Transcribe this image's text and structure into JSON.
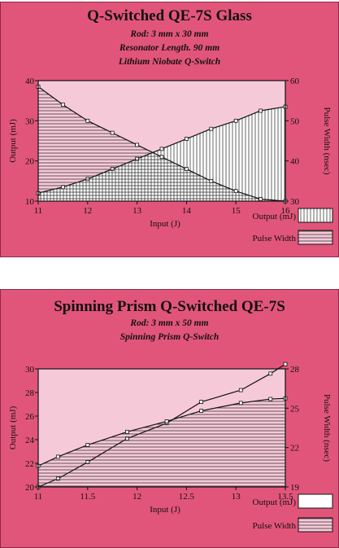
{
  "chart_data": [
    {
      "type": "area",
      "title": "Q-Switched QE-7S  Glass",
      "subtitles": [
        "Rod: 3 mm x 30 mm",
        "Resonator Length. 90 mm",
        "Lithium Niobate Q-Switch"
      ],
      "xlabel": "Input (J)",
      "ylabel": "Output (mJ)",
      "y2label": "Pulse Width (nsec)",
      "xlim": [
        11,
        16
      ],
      "ylim": [
        10,
        40
      ],
      "y2lim": [
        30,
        60
      ],
      "xticks": [
        "11",
        "12",
        "13",
        "14",
        "15",
        "16"
      ],
      "yticks": [
        "10",
        "20",
        "30",
        "40"
      ],
      "y2ticks": [
        "30",
        "40",
        "50",
        "60"
      ],
      "legend_position": "bottom-right",
      "series": [
        {
          "name": "Output (mJ)",
          "axis": "left",
          "fill": "vertical-hatch",
          "x": [
            11,
            11.5,
            12,
            12.5,
            13,
            13.5,
            14,
            14.5,
            15,
            15.5,
            16
          ],
          "values": [
            12,
            13.5,
            15.5,
            18,
            20.5,
            23,
            25.5,
            28,
            30,
            32.5,
            33.5
          ]
        },
        {
          "name": "Pulse Width",
          "axis": "right",
          "fill": "horizontal-hatch",
          "x": [
            11,
            11.5,
            12,
            12.5,
            13,
            13.5,
            14,
            14.5,
            15,
            15.5,
            16
          ],
          "values": [
            58.5,
            54,
            50,
            47,
            44,
            41,
            38,
            35,
            32.5,
            30.5,
            30
          ]
        }
      ]
    },
    {
      "type": "area",
      "title": "Spinning Prism Q-Switched QE-7S",
      "subtitles": [
        "Rod: 3 mm x 50 mm",
        "Spinning Prism Q-Switch"
      ],
      "xlabel": "Input (J)",
      "ylabel": "Output (mJ)",
      "y2label": "Pulse Width (nsec)",
      "xlim": [
        11,
        13.5
      ],
      "ylim": [
        20,
        30
      ],
      "y2lim": [
        19,
        28
      ],
      "xticks": [
        "11",
        "11.5",
        "12",
        "12.5",
        "13",
        "13.5"
      ],
      "yticks": [
        "20",
        "22",
        "24",
        "26",
        "28",
        "30"
      ],
      "y2ticks": [
        "19",
        "22",
        "25",
        "28"
      ],
      "legend_position": "bottom-right",
      "series": [
        {
          "name": "Output (mJ)",
          "axis": "left",
          "fill": "none",
          "x": [
            11,
            11.2,
            11.5,
            11.9,
            12.3,
            12.65,
            13.05,
            13.35,
            13.5
          ],
          "values": [
            20,
            20.7,
            22.1,
            24.1,
            25.4,
            27.2,
            28.2,
            29.6,
            30.4
          ]
        },
        {
          "name": "Pulse Width",
          "axis": "right",
          "fill": "horizontal-hatch",
          "x": [
            11,
            11.2,
            11.5,
            11.9,
            12.3,
            12.65,
            13.05,
            13.35,
            13.5
          ],
          "values": [
            20.6,
            21.3,
            22.2,
            23.2,
            24.0,
            24.8,
            25.4,
            25.7,
            25.75
          ]
        }
      ]
    }
  ]
}
